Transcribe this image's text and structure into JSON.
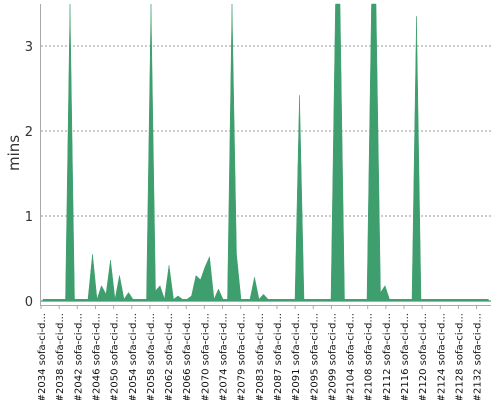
{
  "chart_data": {
    "type": "area",
    "title": "",
    "xlabel": "",
    "ylabel": "mins",
    "ylim": [
      0,
      3.5
    ],
    "yticks": [
      0,
      1,
      2,
      3
    ],
    "grid": true,
    "legend": "none",
    "color": "#3f9e6e",
    "x": [
      2034,
      2035,
      2036,
      2037,
      2038,
      2039,
      2040,
      2041,
      2042,
      2043,
      2044,
      2045,
      2046,
      2047,
      2048,
      2049,
      2050,
      2051,
      2052,
      2053,
      2054,
      2055,
      2056,
      2057,
      2058,
      2059,
      2060,
      2061,
      2062,
      2063,
      2064,
      2065,
      2066,
      2067,
      2068,
      2069,
      2070,
      2071,
      2072,
      2073,
      2074,
      2075,
      2076,
      2077,
      2078,
      2079,
      2080,
      2081,
      2082,
      2083,
      2084,
      2085,
      2086,
      2087,
      2088,
      2089,
      2090,
      2091,
      2092,
      2093,
      2094,
      2095,
      2096,
      2097,
      2098,
      2099,
      2100,
      2101,
      2102,
      2103,
      2104,
      2105,
      2106,
      2107,
      2108,
      2109,
      2110,
      2111,
      2112,
      2113,
      2114,
      2115,
      2116,
      2117,
      2118,
      2119,
      2120,
      2121,
      2122,
      2123,
      2124,
      2125,
      2126,
      2127,
      2128,
      2129,
      2130,
      2131,
      2132,
      2133
    ],
    "values": [
      0.02,
      0.02,
      0.02,
      0.02,
      0.02,
      0.02,
      3.6,
      0.02,
      0.02,
      0.02,
      0.02,
      0.55,
      0.02,
      0.18,
      0.08,
      0.48,
      0.02,
      0.3,
      0.02,
      0.1,
      0.02,
      0.02,
      0.02,
      0.02,
      3.6,
      0.12,
      0.18,
      0.02,
      0.42,
      0.02,
      0.06,
      0.02,
      0.02,
      0.06,
      0.3,
      0.25,
      0.4,
      0.52,
      0.02,
      0.14,
      0.02,
      0.02,
      3.6,
      0.55,
      0.02,
      0.02,
      0.02,
      0.28,
      0.02,
      0.08,
      0.02,
      0.02,
      0.02,
      0.02,
      0.02,
      0.02,
      0.02,
      2.42,
      0.02,
      0.02,
      0.02,
      0.02,
      0.02,
      0.02,
      0.02,
      3.6,
      3.6,
      0.02,
      0.02,
      0.02,
      0.02,
      0.02,
      0.02,
      3.6,
      3.6,
      0.1,
      0.18,
      0.02,
      0.02,
      0.02,
      0.02,
      0.02,
      0.02,
      3.35,
      0.02,
      0.02,
      0.02,
      0.02,
      0.02,
      0.02,
      0.02,
      0.02,
      0.02,
      0.02,
      0.02,
      0.02,
      0.02,
      0.02,
      0.02,
      0.02
    ],
    "categories": [
      "#2034 sofa-ci-d...",
      "#2038 sofa-ci-d...",
      "#2042 sofa-ci-d...",
      "#2046 sofa-ci-d...",
      "#2050 sofa-ci-d...",
      "#2054 sofa-ci-d...",
      "#2058 sofa-ci-d...",
      "#2062 sofa-ci-d...",
      "#2066 sofa-ci-d...",
      "#2070 sofa-ci-d...",
      "#2074 sofa-ci-d...",
      "#2079 sofa-ci-d...",
      "#2083 sofa-ci-d...",
      "#2087 sofa-ci-d...",
      "#2091 sofa-ci-d...",
      "#2095 sofa-ci-d...",
      "#2099 sofa-ci-d...",
      "#2104 sofa-ci-d...",
      "#2108 sofa-ci-d...",
      "#2112 sofa-ci-d...",
      "#2116 sofa-ci-d...",
      "#2120 sofa-ci-d...",
      "#2124 sofa-ci-d...",
      "#2128 sofa-ci-d...",
      "#2132 sofa-ci-d..."
    ]
  }
}
